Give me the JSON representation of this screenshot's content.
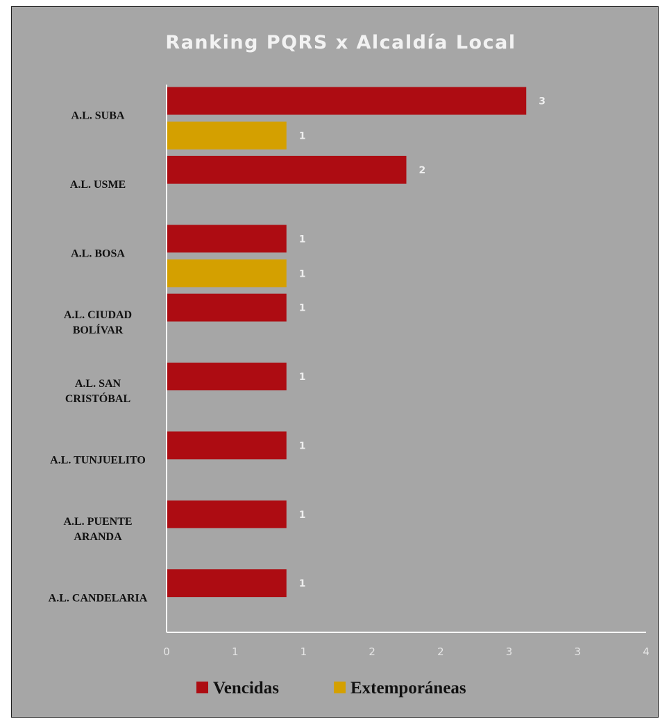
{
  "chart_data": {
    "type": "bar",
    "orientation": "horizontal",
    "title": "Ranking PQRS x Alcaldía Local",
    "categories": [
      "A.L. SUBA",
      "A.L. USME",
      "A.L. BOSA",
      "A.L. CIUDAD BOLÍVAR",
      "A.L. SAN CRISTÓBAL",
      "A.L. TUNJUELITO",
      "A.L. PUENTE ARANDA",
      "A.L. CANDELARIA"
    ],
    "series": [
      {
        "name": "Vencidas",
        "color": "#ad0c12",
        "values": [
          3,
          2,
          1,
          1,
          1,
          1,
          1,
          1
        ]
      },
      {
        "name": "Extemporáneas",
        "color": "#d4a000",
        "values": [
          1,
          0,
          1,
          0,
          0,
          0,
          0,
          0
        ]
      }
    ],
    "data_labels": {
      "Vencidas": [
        "3",
        "2",
        "1",
        "1",
        "1",
        "1",
        "1",
        "1"
      ],
      "Extemporáneas": [
        "1",
        "",
        "1",
        "",
        "",
        "",
        "",
        ""
      ]
    },
    "xlim": [
      0,
      4
    ],
    "x_tick_labels": [
      "0",
      "1",
      "1",
      "2",
      "2",
      "3",
      "3",
      "4"
    ],
    "grid": false,
    "legend_position": "bottom",
    "background_color": "#a6a6a6"
  }
}
